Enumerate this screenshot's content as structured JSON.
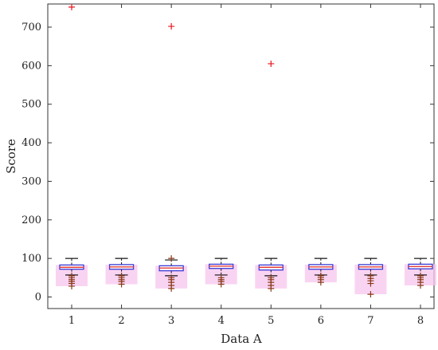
{
  "chart_data": {
    "type": "box",
    "xlabel": "Data A",
    "ylabel": "Score",
    "categories": [
      "1",
      "2",
      "3",
      "4",
      "5",
      "6",
      "7",
      "8"
    ],
    "ylim": [
      -30,
      760
    ],
    "yticks": [
      0,
      100,
      200,
      300,
      400,
      500,
      600,
      700
    ],
    "grid": false,
    "colors": {
      "box": "#3a3ad6",
      "median": "#e23b3b",
      "whisker": "#111111",
      "outlier": "#e8161f",
      "spread": "#f7c6ee",
      "low_marks": "#8a3b1a"
    },
    "boxes": [
      {
        "q1": 72,
        "median": 77,
        "q3": 83,
        "whisker_low": 57,
        "whisker_high": 100,
        "outliers": [
          752,
          28,
          35,
          40,
          45,
          50,
          55
        ]
      },
      {
        "q1": 72,
        "median": 78,
        "q3": 84,
        "whisker_low": 57,
        "whisker_high": 100,
        "outliers": [
          33,
          40,
          45,
          50,
          55
        ]
      },
      {
        "q1": 68,
        "median": 75,
        "q3": 81,
        "whisker_low": 55,
        "whisker_high": 96,
        "outliers": [
          702,
          100,
          22,
          30,
          38,
          45,
          50
        ]
      },
      {
        "q1": 74,
        "median": 80,
        "q3": 85,
        "whisker_low": 57,
        "whisker_high": 100,
        "outliers": [
          33,
          40,
          45,
          50
        ]
      },
      {
        "q1": 70,
        "median": 77,
        "q3": 83,
        "whisker_low": 55,
        "whisker_high": 100,
        "outliers": [
          605,
          22,
          30,
          38,
          45,
          50
        ]
      },
      {
        "q1": 72,
        "median": 78,
        "q3": 84,
        "whisker_low": 57,
        "whisker_high": 100,
        "outliers": [
          38,
          45,
          50,
          55
        ]
      },
      {
        "q1": 72,
        "median": 78,
        "q3": 84,
        "whisker_low": 57,
        "whisker_high": 100,
        "outliers": [
          7,
          35,
          42,
          48,
          55
        ]
      },
      {
        "q1": 73,
        "median": 79,
        "q3": 85,
        "whisker_low": 57,
        "whisker_high": 100,
        "outliers": [
          30,
          38,
          45,
          50,
          55
        ]
      }
    ]
  }
}
